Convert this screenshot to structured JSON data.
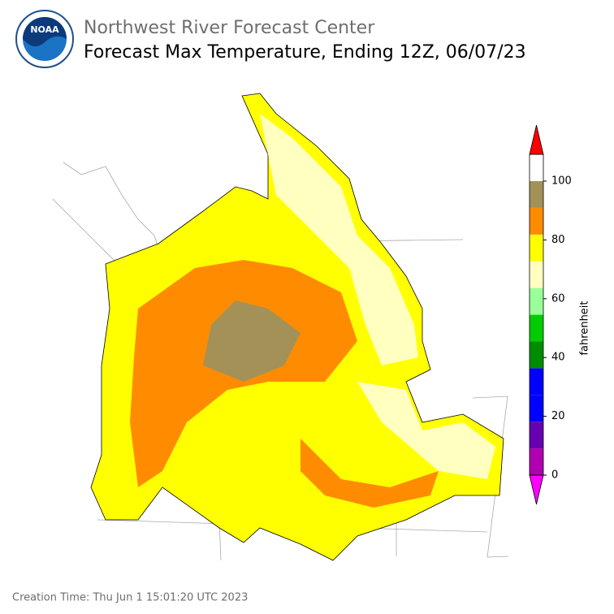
{
  "header": {
    "logo": "NOAA",
    "title": "Northwest River Forecast Center",
    "subtitle": "Forecast Max Temperature, Ending 12Z, 06/07/23"
  },
  "colorbar": {
    "label": "fahrenheit",
    "ticks": [
      0,
      20,
      40,
      60,
      80,
      100
    ],
    "colors": [
      "#b000b0",
      "#6600b0",
      "#0000ff",
      "#0000ff",
      "#008c00",
      "#00cc00",
      "#99ff99",
      "#ffffc0",
      "#ffff00",
      "#ff8c00",
      "#a39158"
    ],
    "under_color": "#ff00ff",
    "over_color": "#ff0000"
  },
  "footer": "Creation Time: Thu Jun 1 15:01:20 UTC 2023"
}
